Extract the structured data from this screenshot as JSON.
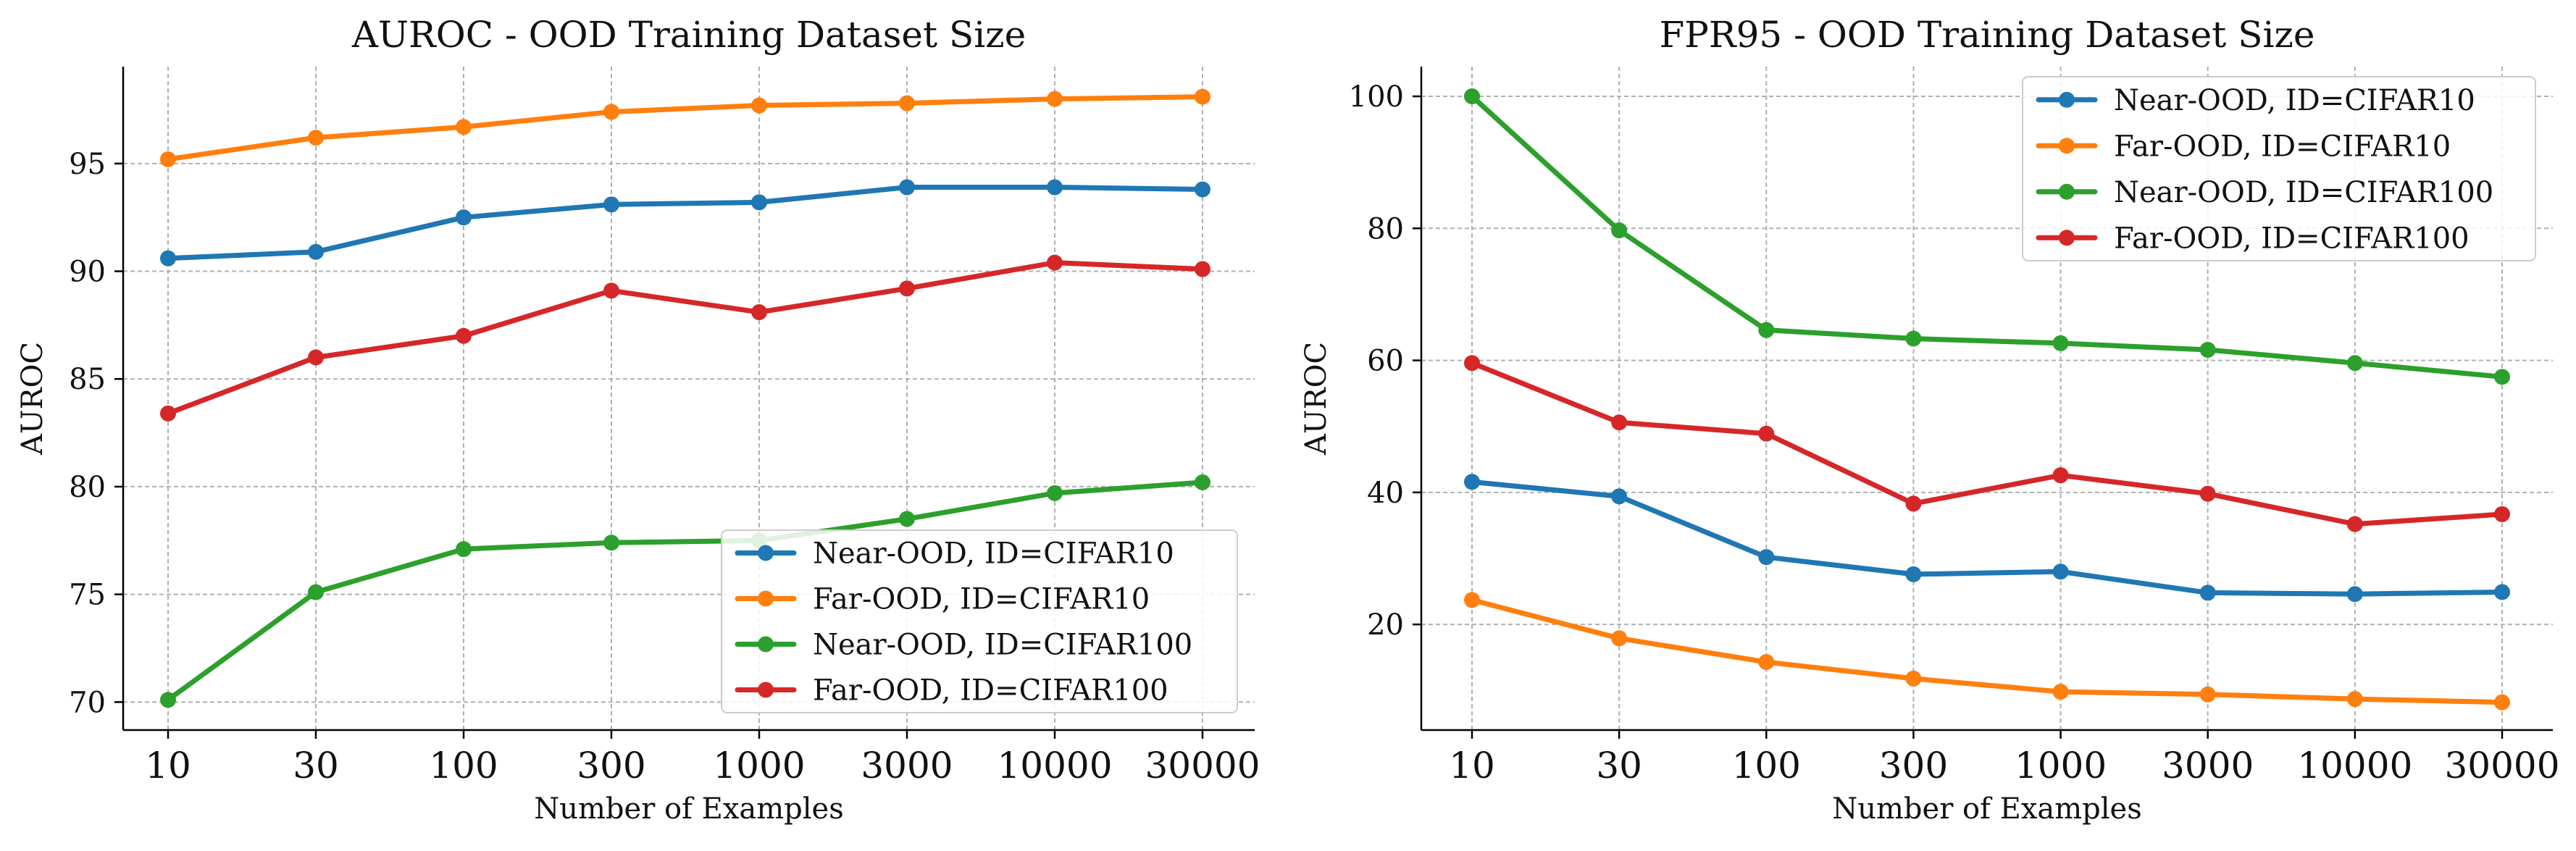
{
  "chart_data": [
    {
      "type": "line",
      "title": "AUROC - OOD Training Dataset Size",
      "xlabel": "Number of Examples",
      "ylabel": "AUROC",
      "x_categories": [
        "10",
        "30",
        "100",
        "300",
        "1000",
        "3000",
        "10000",
        "30000"
      ],
      "y_ticks": [
        70,
        75,
        80,
        85,
        90,
        95
      ],
      "ylim": [
        68.7,
        99.5
      ],
      "grid": true,
      "legend_position": "lower-right",
      "series": [
        {
          "name": "Near-OOD, ID=CIFAR10",
          "color": "#1f77b4",
          "values": [
            90.6,
            90.9,
            92.5,
            93.1,
            93.2,
            93.9,
            93.9,
            93.8
          ]
        },
        {
          "name": "Far-OOD, ID=CIFAR10",
          "color": "#ff7f0e",
          "values": [
            95.2,
            96.2,
            96.7,
            97.4,
            97.7,
            97.8,
            98.0,
            98.1
          ]
        },
        {
          "name": "Near-OOD, ID=CIFAR100",
          "color": "#2ca02c",
          "values": [
            70.1,
            75.1,
            77.1,
            77.4,
            77.5,
            78.5,
            79.7,
            80.2
          ]
        },
        {
          "name": "Far-OOD, ID=CIFAR100",
          "color": "#d62728",
          "values": [
            83.4,
            86.0,
            87.0,
            89.1,
            88.1,
            89.2,
            90.4,
            90.1
          ]
        }
      ]
    },
    {
      "type": "line",
      "title": "FPR95 - OOD Training Dataset Size",
      "xlabel": "Number of Examples",
      "ylabel": "AUROC",
      "x_categories": [
        "10",
        "30",
        "100",
        "300",
        "1000",
        "3000",
        "10000",
        "30000"
      ],
      "y_ticks": [
        20,
        40,
        60,
        80,
        100
      ],
      "ylim": [
        4,
        104.5
      ],
      "grid": true,
      "legend_position": "upper-right",
      "series": [
        {
          "name": "Near-OOD, ID=CIFAR10",
          "color": "#1f77b4",
          "values": [
            41.6,
            39.4,
            30.2,
            27.6,
            28.0,
            24.8,
            24.6,
            24.9
          ]
        },
        {
          "name": "Far-OOD, ID=CIFAR10",
          "color": "#ff7f0e",
          "values": [
            23.7,
            17.9,
            14.3,
            11.8,
            9.8,
            9.4,
            8.7,
            8.2
          ]
        },
        {
          "name": "Near-OOD, ID=CIFAR100",
          "color": "#2ca02c",
          "values": [
            100.0,
            79.7,
            64.6,
            63.3,
            62.6,
            61.6,
            59.6,
            57.5
          ]
        },
        {
          "name": "Far-OOD, ID=CIFAR100",
          "color": "#d62728",
          "values": [
            59.6,
            50.6,
            48.9,
            38.3,
            42.6,
            39.8,
            35.2,
            36.7
          ]
        }
      ]
    }
  ]
}
